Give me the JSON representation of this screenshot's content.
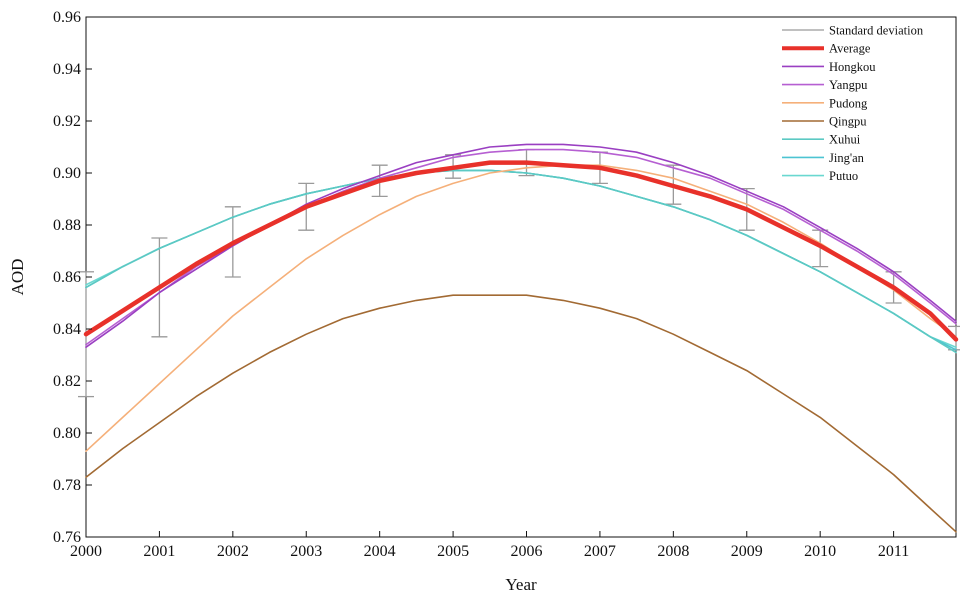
{
  "chart_data": {
    "type": "line",
    "xlabel": "Year",
    "ylabel": "AOD",
    "xlim": [
      2000,
      2011.85
    ],
    "ylim": [
      0.76,
      0.96
    ],
    "x_ticks": [
      "2000",
      "2001",
      "2002",
      "2003",
      "2004",
      "2005",
      "2006",
      "2007",
      "2008",
      "2009",
      "2010",
      "2011"
    ],
    "y_ticks": [
      "0.76",
      "0.78",
      "0.80",
      "0.82",
      "0.84",
      "0.86",
      "0.88",
      "0.90",
      "0.92",
      "0.94",
      "0.96"
    ],
    "grid": false,
    "legend_position": "top-right",
    "x": [
      2000,
      2000.5,
      2001,
      2001.5,
      2002,
      2002.5,
      2003,
      2003.5,
      2004,
      2004.5,
      2005,
      2005.5,
      2006,
      2006.5,
      2007,
      2007.5,
      2008,
      2008.5,
      2009,
      2009.5,
      2010,
      2010.5,
      2011,
      2011.5,
      2011.85
    ],
    "series": [
      {
        "name": "Average",
        "color": "#e8312a",
        "values": [
          0.838,
          0.847,
          0.856,
          0.865,
          0.873,
          0.88,
          0.887,
          0.892,
          0.897,
          0.9,
          0.902,
          0.904,
          0.904,
          0.903,
          0.902,
          0.899,
          0.895,
          0.891,
          0.886,
          0.879,
          0.872,
          0.864,
          0.856,
          0.846,
          0.836
        ]
      },
      {
        "name": "Hongkou",
        "color": "#9a3fc2",
        "values": [
          0.833,
          0.843,
          0.854,
          0.863,
          0.872,
          0.88,
          0.888,
          0.894,
          0.899,
          0.904,
          0.907,
          0.91,
          0.911,
          0.911,
          0.91,
          0.908,
          0.904,
          0.899,
          0.893,
          0.887,
          0.879,
          0.871,
          0.862,
          0.851,
          0.843
        ]
      },
      {
        "name": "Yangpu",
        "color": "#b65fd2",
        "values": [
          0.834,
          0.844,
          0.854,
          0.864,
          0.872,
          0.88,
          0.887,
          0.893,
          0.898,
          0.902,
          0.906,
          0.908,
          0.909,
          0.909,
          0.908,
          0.906,
          0.902,
          0.898,
          0.892,
          0.886,
          0.878,
          0.87,
          0.861,
          0.85,
          0.842
        ]
      },
      {
        "name": "Pudong",
        "color": "#f5b07a",
        "values": [
          0.793,
          0.806,
          0.819,
          0.832,
          0.845,
          0.856,
          0.867,
          0.876,
          0.884,
          0.891,
          0.896,
          0.9,
          0.902,
          0.903,
          0.903,
          0.901,
          0.898,
          0.893,
          0.888,
          0.881,
          0.873,
          0.864,
          0.855,
          0.844,
          0.837
        ]
      },
      {
        "name": "Qingpu",
        "color": "#a26a33",
        "values": [
          0.783,
          0.794,
          0.804,
          0.814,
          0.823,
          0.831,
          0.838,
          0.844,
          0.848,
          0.851,
          0.853,
          0.853,
          0.853,
          0.851,
          0.848,
          0.844,
          0.838,
          0.831,
          0.824,
          0.815,
          0.806,
          0.795,
          0.784,
          0.771,
          0.762
        ]
      },
      {
        "name": "Xuhui",
        "color": "#5cc9c3",
        "values": [
          0.856,
          0.864,
          0.871,
          0.877,
          0.883,
          0.888,
          0.892,
          0.895,
          0.898,
          0.9,
          0.901,
          0.901,
          0.9,
          0.898,
          0.895,
          0.891,
          0.887,
          0.882,
          0.876,
          0.869,
          0.862,
          0.854,
          0.846,
          0.837,
          0.831
        ]
      },
      {
        "name": "Jing'an",
        "color": "#4cc4d2",
        "values": [
          0.856,
          0.864,
          0.871,
          0.877,
          0.883,
          0.888,
          0.892,
          0.895,
          0.898,
          0.9,
          0.901,
          0.901,
          0.9,
          0.898,
          0.895,
          0.891,
          0.887,
          0.882,
          0.876,
          0.869,
          0.862,
          0.854,
          0.846,
          0.837,
          0.832
        ]
      },
      {
        "name": "Putuo",
        "color": "#6ad8d0",
        "values": [
          0.857,
          0.864,
          0.871,
          0.877,
          0.883,
          0.888,
          0.892,
          0.895,
          0.898,
          0.9,
          0.901,
          0.901,
          0.9,
          0.898,
          0.895,
          0.891,
          0.887,
          0.882,
          0.876,
          0.869,
          0.862,
          0.854,
          0.846,
          0.837,
          0.833
        ]
      }
    ],
    "error_bars": {
      "name": "Standard deviation",
      "color": "#9a9a9a",
      "points": [
        {
          "x": 2000,
          "y": 0.838,
          "low": 0.814,
          "high": 0.862
        },
        {
          "x": 2001,
          "y": 0.856,
          "low": 0.837,
          "high": 0.875
        },
        {
          "x": 2002,
          "y": 0.873,
          "low": 0.86,
          "high": 0.887
        },
        {
          "x": 2003,
          "y": 0.887,
          "low": 0.878,
          "high": 0.896
        },
        {
          "x": 2004,
          "y": 0.897,
          "low": 0.891,
          "high": 0.903
        },
        {
          "x": 2005,
          "y": 0.902,
          "low": 0.898,
          "high": 0.907
        },
        {
          "x": 2006,
          "y": 0.904,
          "low": 0.899,
          "high": 0.909
        },
        {
          "x": 2007,
          "y": 0.902,
          "low": 0.896,
          "high": 0.908
        },
        {
          "x": 2008,
          "y": 0.895,
          "low": 0.888,
          "high": 0.903
        },
        {
          "x": 2009,
          "y": 0.886,
          "low": 0.878,
          "high": 0.894
        },
        {
          "x": 2010,
          "y": 0.872,
          "low": 0.864,
          "high": 0.878
        },
        {
          "x": 2011,
          "y": 0.856,
          "low": 0.85,
          "high": 0.862
        },
        {
          "x": 2011.85,
          "y": 0.836,
          "low": 0.832,
          "high": 0.841
        }
      ]
    }
  }
}
